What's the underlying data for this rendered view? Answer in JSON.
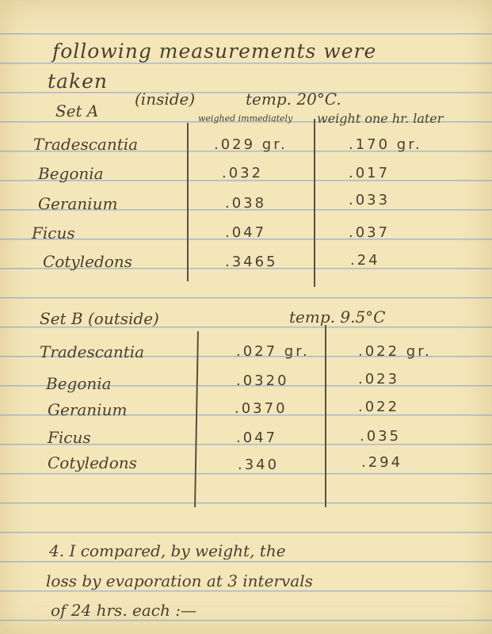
{
  "intro": {
    "line1": "following measurements were",
    "line2": "taken"
  },
  "set_a": {
    "title": "Set A",
    "caret_note": "(inside)",
    "temp": "temp. 20°C.",
    "col1_header": "weighed immediately",
    "col2_header": "weight one hr. later",
    "rows": [
      {
        "plant": "Tradescantia",
        "immediate": ".029 gr.",
        "later": ".170 gr."
      },
      {
        "plant": "Begonia",
        "immediate": ".032",
        "later": ".017"
      },
      {
        "plant": "Geranium",
        "immediate": ".038",
        "later": ".033"
      },
      {
        "plant": "Ficus",
        "immediate": ".047",
        "later": ".037"
      },
      {
        "plant": "Cotyledons",
        "immediate": ".3465",
        "later": ".24"
      }
    ]
  },
  "set_b": {
    "title": "Set B (outside)",
    "temp": "temp. 9.5°C",
    "rows": [
      {
        "plant": "Tradescantia",
        "immediate": ".027 gr.",
        "later": ".022 gr."
      },
      {
        "plant": "Begonia",
        "immediate": ".0320",
        "later": ".023"
      },
      {
        "plant": "Geranium",
        "immediate": ".0370",
        "later": ".022"
      },
      {
        "plant": "Ficus",
        "immediate": ".047",
        "later": ".035"
      },
      {
        "plant": "Cotyledons",
        "immediate": ".340",
        "later": ".294"
      }
    ]
  },
  "section4": {
    "line1": "4. I compared, by weight, the",
    "line2": "loss by evaporation at 3 intervals",
    "line3": "of 24 hrs. each :—"
  }
}
